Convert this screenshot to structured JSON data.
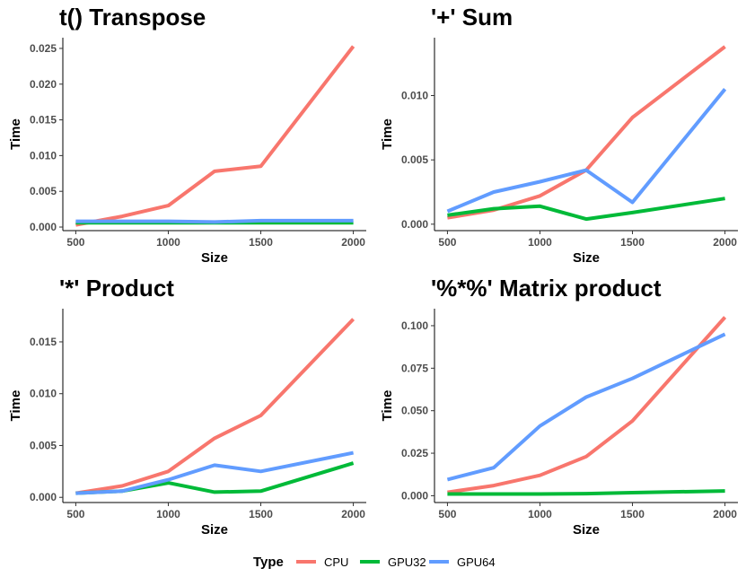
{
  "legend": {
    "title": "Type",
    "position": "bottom",
    "entries": [
      {
        "name": "CPU",
        "color": "#F8766D"
      },
      {
        "name": "GPU32",
        "color": "#00BA38"
      },
      {
        "name": "GPU64",
        "color": "#619CFF"
      }
    ]
  },
  "chart_data": [
    {
      "type": "line",
      "title": "t() Transpose",
      "xlabel": "Size",
      "ylabel": "Time",
      "x": [
        500,
        750,
        1000,
        1250,
        1500,
        2000
      ],
      "xlim": [
        430,
        2070
      ],
      "ylim": [
        -0.0005,
        0.0265
      ],
      "xticks": [
        500,
        1000,
        1500,
        2000
      ],
      "xtick_labels": [
        "500",
        "1000",
        "1500",
        "2000"
      ],
      "yticks": [
        0,
        0.005,
        0.01,
        0.015,
        0.02,
        0.025
      ],
      "ytick_labels": [
        "0.000",
        "0.005",
        "0.010",
        "0.015",
        "0.020",
        "0.025"
      ],
      "grid": false,
      "series": [
        {
          "name": "CPU",
          "color": "#F8766D",
          "values": [
            0.0003,
            0.0015,
            0.003,
            0.0078,
            0.0085,
            0.0253
          ]
        },
        {
          "name": "GPU32",
          "color": "#00BA38",
          "values": [
            0.0006,
            0.0006,
            0.0006,
            0.0006,
            0.0006,
            0.0006
          ]
        },
        {
          "name": "GPU64",
          "color": "#619CFF",
          "values": [
            0.0008,
            0.0008,
            0.0008,
            0.0007,
            0.0009,
            0.0009
          ]
        }
      ]
    },
    {
      "type": "line",
      "title": "'+' Sum",
      "xlabel": "Size",
      "ylabel": "Time",
      "x": [
        500,
        750,
        1000,
        1250,
        1500,
        2000
      ],
      "xlim": [
        430,
        2070
      ],
      "ylim": [
        -0.0005,
        0.0145
      ],
      "xticks": [
        500,
        1000,
        1500,
        2000
      ],
      "xtick_labels": [
        "500",
        "1000",
        "1500",
        "2000"
      ],
      "yticks": [
        0,
        0.005,
        0.01
      ],
      "ytick_labels": [
        "0.000",
        "0.005",
        "0.010"
      ],
      "grid": false,
      "series": [
        {
          "name": "CPU",
          "color": "#F8766D",
          "values": [
            0.0005,
            0.0011,
            0.0022,
            0.0042,
            0.0083,
            0.0138
          ]
        },
        {
          "name": "GPU32",
          "color": "#00BA38",
          "values": [
            0.0007,
            0.0012,
            0.0014,
            0.0004,
            0.0009,
            0.002
          ]
        },
        {
          "name": "GPU64",
          "color": "#619CFF",
          "values": [
            0.001,
            0.0025,
            0.0033,
            0.0042,
            0.0017,
            0.0105
          ]
        }
      ]
    },
    {
      "type": "line",
      "title": "'*' Product",
      "xlabel": "Size",
      "ylabel": "Time",
      "x": [
        500,
        750,
        1000,
        1250,
        1500,
        2000
      ],
      "xlim": [
        430,
        2070
      ],
      "ylim": [
        -0.0005,
        0.0182
      ],
      "xticks": [
        500,
        1000,
        1500,
        2000
      ],
      "xtick_labels": [
        "500",
        "1000",
        "1500",
        "2000"
      ],
      "yticks": [
        0,
        0.005,
        0.01,
        0.015
      ],
      "ytick_labels": [
        "0.000",
        "0.005",
        "0.010",
        "0.015"
      ],
      "grid": false,
      "series": [
        {
          "name": "CPU",
          "color": "#F8766D",
          "values": [
            0.0004,
            0.0011,
            0.0025,
            0.0057,
            0.0079,
            0.0172
          ]
        },
        {
          "name": "GPU32",
          "color": "#00BA38",
          "values": [
            0.0004,
            0.0006,
            0.0014,
            0.0005,
            0.0006,
            0.0033
          ]
        },
        {
          "name": "GPU64",
          "color": "#619CFF",
          "values": [
            0.0004,
            0.0006,
            0.0017,
            0.0031,
            0.0025,
            0.0043
          ]
        }
      ]
    },
    {
      "type": "line",
      "title": "'%*%' Matrix product",
      "xlabel": "Size",
      "ylabel": "Time",
      "x": [
        500,
        750,
        1000,
        1250,
        1500,
        2000
      ],
      "xlim": [
        430,
        2070
      ],
      "ylim": [
        -0.004,
        0.11
      ],
      "xticks": [
        500,
        1000,
        1500,
        2000
      ],
      "xtick_labels": [
        "500",
        "1000",
        "1500",
        "2000"
      ],
      "yticks": [
        0,
        0.025,
        0.05,
        0.075,
        0.1
      ],
      "ytick_labels": [
        "0.000",
        "0.025",
        "0.050",
        "0.075",
        "0.100"
      ],
      "grid": false,
      "series": [
        {
          "name": "CPU",
          "color": "#F8766D",
          "values": [
            0.002,
            0.006,
            0.012,
            0.023,
            0.044,
            0.105
          ]
        },
        {
          "name": "GPU32",
          "color": "#00BA38",
          "values": [
            0.001,
            0.001,
            0.001,
            0.0012,
            0.0018,
            0.0028
          ]
        },
        {
          "name": "GPU64",
          "color": "#619CFF",
          "values": [
            0.0095,
            0.0165,
            0.041,
            0.058,
            0.069,
            0.095
          ]
        }
      ]
    }
  ]
}
